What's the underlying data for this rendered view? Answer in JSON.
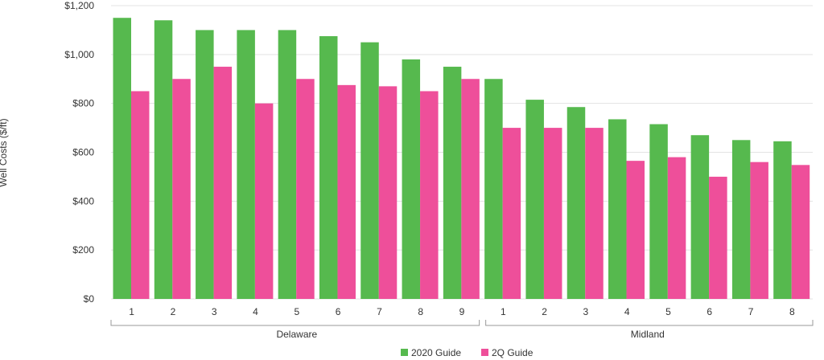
{
  "chart_data": {
    "type": "bar",
    "title": "",
    "xlabel": "",
    "ylabel": "Well Costs ($/ft)",
    "ylim": [
      0,
      1200
    ],
    "yticks": [
      0,
      200,
      400,
      600,
      800,
      1000,
      1200
    ],
    "ytick_labels": [
      "$0",
      "$200",
      "$400",
      "$600",
      "$800",
      "$1,000",
      "$1,200"
    ],
    "grid": true,
    "legend_position": "bottom-center",
    "groups": [
      {
        "name": "Delaware",
        "categories": [
          "1",
          "2",
          "3",
          "4",
          "5",
          "6",
          "7",
          "8",
          "9"
        ]
      },
      {
        "name": "Midland",
        "categories": [
          "1",
          "2",
          "3",
          "4",
          "5",
          "6",
          "7",
          "8"
        ]
      }
    ],
    "series": [
      {
        "name": "2020 Guide",
        "color": "#56b94e",
        "values": [
          1150,
          1140,
          1100,
          1100,
          1100,
          1075,
          1050,
          980,
          950,
          900,
          815,
          785,
          735,
          715,
          670,
          650,
          645
        ]
      },
      {
        "name": "2Q Guide",
        "color": "#ee4f9a",
        "values": [
          850,
          900,
          950,
          800,
          900,
          875,
          870,
          850,
          900,
          700,
          700,
          700,
          565,
          580,
          500,
          560,
          548
        ]
      }
    ]
  }
}
